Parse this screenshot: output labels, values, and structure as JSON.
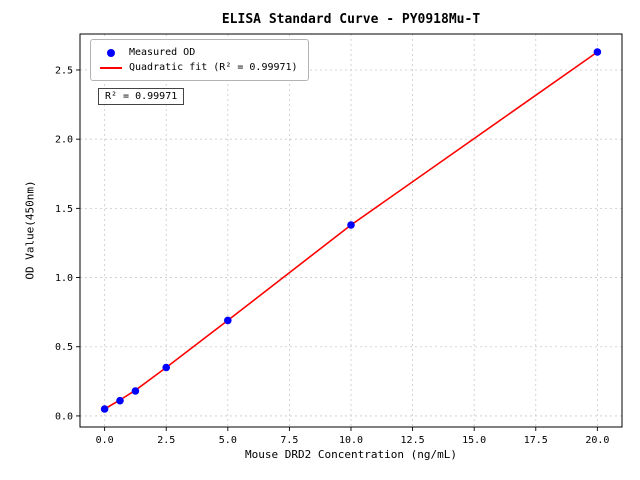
{
  "chart_data": {
    "type": "scatter",
    "title": "ELISA Standard Curve - PY0918Mu-T",
    "xlabel": "Mouse DRD2 Concentration (ng/mL)",
    "ylabel": "OD Value(450nm)",
    "xlim": [
      -1,
      21
    ],
    "ylim": [
      -0.08,
      2.76
    ],
    "xticks": [
      0,
      2.5,
      5,
      7.5,
      10,
      12.5,
      15,
      17.5,
      20
    ],
    "yticks": [
      0,
      0.5,
      1,
      1.5,
      2,
      2.5
    ],
    "grid": true,
    "legend_position": "upper-left",
    "legend": [
      {
        "label": "Measured OD",
        "marker": "dot",
        "color": "#0000ff"
      },
      {
        "label": "Quadratic fit (R² = 0.99971)",
        "marker": "line",
        "color": "#ff0000"
      }
    ],
    "annotation": "R² = 0.99971",
    "series": [
      {
        "name": "Quadratic fit",
        "type": "line",
        "color": "#ff0000",
        "points": [
          [
            0,
            0.05
          ],
          [
            0.625,
            0.115
          ],
          [
            1.25,
            0.185
          ],
          [
            2.5,
            0.35
          ],
          [
            5,
            0.69
          ],
          [
            10,
            1.38
          ],
          [
            15,
            2.005
          ],
          [
            20,
            2.63
          ]
        ]
      },
      {
        "name": "Measured OD",
        "type": "scatter",
        "color": "#0000ff",
        "points": [
          [
            0,
            0.05
          ],
          [
            0.625,
            0.11
          ],
          [
            1.25,
            0.18
          ],
          [
            2.5,
            0.35
          ],
          [
            5,
            0.69
          ],
          [
            10,
            1.38
          ],
          [
            20,
            2.63
          ]
        ]
      }
    ]
  }
}
